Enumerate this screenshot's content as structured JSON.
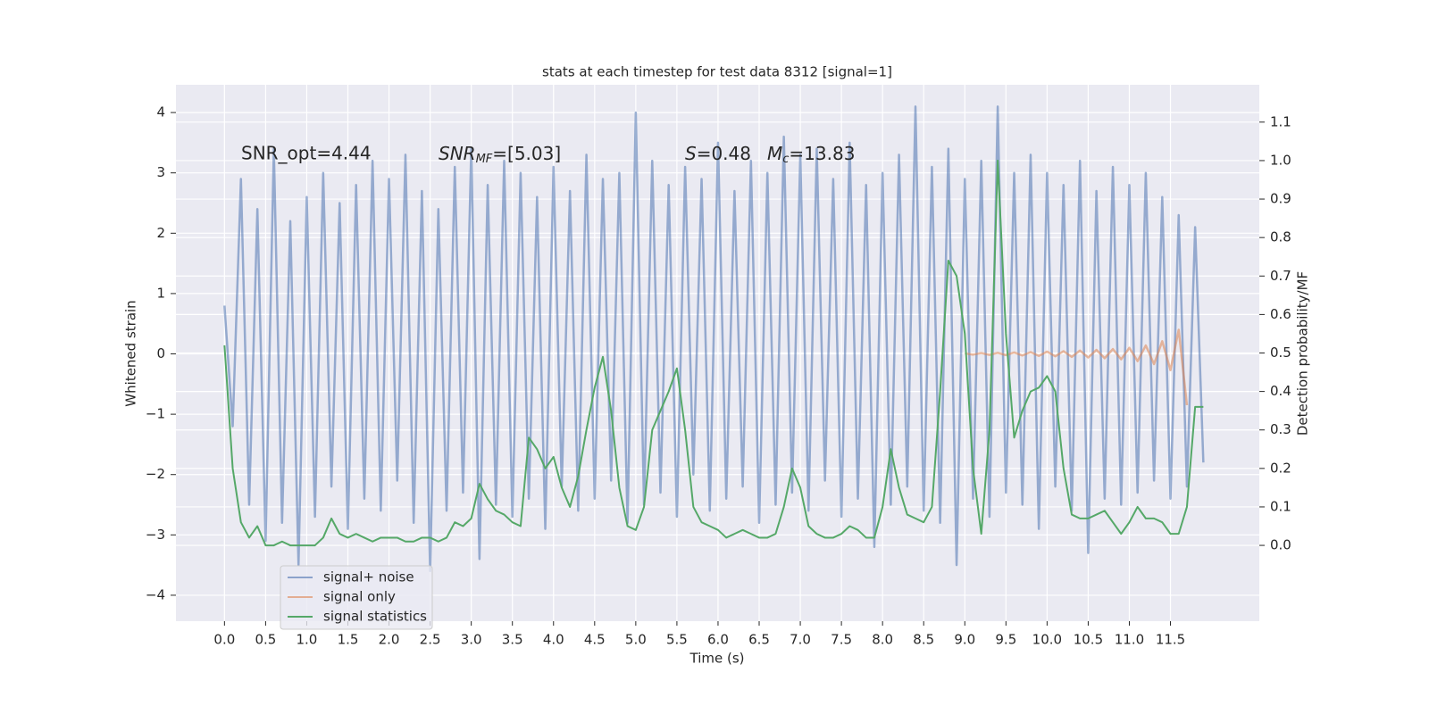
{
  "chart_data": {
    "type": "line",
    "title": "stats at each timestep for test data 8312 [signal=1]",
    "xlabel": "Time (s)",
    "ylabel": "Whitened strain",
    "y2label": "Detection probability/MF",
    "annotations": [
      "SNR_opt=4.44",
      [
        "SNR",
        "MF",
        "=[5.03]"
      ],
      [
        "S",
        "=0.48"
      ],
      [
        "M",
        "c",
        "=13.83"
      ]
    ],
    "x": [
      0,
      0.1,
      0.2,
      0.3,
      0.4,
      0.5,
      0.6,
      0.7,
      0.8,
      0.9,
      1,
      1.1,
      1.2,
      1.3,
      1.4,
      1.5,
      1.6,
      1.7,
      1.8,
      1.9,
      2,
      2.1,
      2.2,
      2.3,
      2.4,
      2.5,
      2.6,
      2.7,
      2.8,
      2.9,
      3,
      3.1,
      3.2,
      3.3,
      3.4,
      3.5,
      3.6,
      3.7,
      3.8,
      3.9,
      4,
      4.1,
      4.2,
      4.3,
      4.4,
      4.5,
      4.6,
      4.7,
      4.8,
      4.9,
      5,
      5.1,
      5.2,
      5.3,
      5.4,
      5.5,
      5.6,
      5.7,
      5.8,
      5.9,
      6,
      6.1,
      6.2,
      6.3,
      6.4,
      6.5,
      6.6,
      6.7,
      6.8,
      6.9,
      7,
      7.1,
      7.2,
      7.3,
      7.4,
      7.5,
      7.6,
      7.7,
      7.8,
      7.9,
      8,
      8.1,
      8.2,
      8.3,
      8.4,
      8.5,
      8.6,
      8.7,
      8.8,
      8.9,
      9,
      9.1,
      9.2,
      9.3,
      9.4,
      9.5,
      9.6,
      9.7,
      9.8,
      9.9,
      10,
      10.1,
      10.2,
      10.3,
      10.4,
      10.5,
      10.6,
      10.7,
      10.8,
      10.9,
      11,
      11.1,
      11.2,
      11.3,
      11.4,
      11.5,
      11.6,
      11.7,
      11.8,
      11.9
    ],
    "series": [
      {
        "name": "signal+ noise",
        "color": "#4c72b0",
        "values": [
          0.8,
          -1.2,
          2.9,
          -2.5,
          2.4,
          -3.1,
          3.4,
          -2.8,
          2.2,
          -3.5,
          2.6,
          -2.7,
          3.0,
          -2.2,
          2.5,
          -2.9,
          2.8,
          -2.4,
          3.2,
          -2.6,
          2.9,
          -2.1,
          3.3,
          -2.8,
          2.7,
          -3.6,
          2.4,
          -2.6,
          3.1,
          -2.3,
          3.4,
          -3.4,
          2.8,
          -2.5,
          3.2,
          -2.7,
          3.0,
          -2.4,
          2.6,
          -2.9,
          3.1,
          -2.2,
          2.7,
          -2.6,
          3.3,
          -2.4,
          2.9,
          -2.1,
          3.0,
          -2.8,
          4.0,
          -2.5,
          3.2,
          -2.3,
          2.8,
          -2.7,
          3.1,
          -2.0,
          2.9,
          -2.6,
          3.5,
          -2.4,
          2.7,
          -2.2,
          3.2,
          -2.8,
          3.0,
          -2.5,
          3.6,
          -2.3,
          3.3,
          -2.6,
          3.4,
          -2.1,
          2.9,
          -2.7,
          3.5,
          -2.4,
          2.8,
          -3.2,
          3.0,
          -2.5,
          3.3,
          -2.2,
          4.1,
          -2.6,
          3.1,
          -2.8,
          3.4,
          -3.5,
          2.9,
          -2.4,
          3.2,
          -2.7,
          4.1,
          -2.3,
          3.0,
          -2.5,
          3.3,
          -2.9,
          3.0,
          -2.2,
          2.8,
          -2.6,
          3.2,
          -3.3,
          2.7,
          -2.4,
          3.1,
          -2.5,
          2.8,
          -2.3,
          3.0,
          -2.1,
          2.6,
          -2.4,
          2.3,
          -2.2,
          2.1,
          -1.8
        ]
      },
      {
        "name": "signal only",
        "color": "#dd8452",
        "x": [
          9,
          9.1,
          9.2,
          9.3,
          9.4,
          9.5,
          9.6,
          9.7,
          9.8,
          9.9,
          10,
          10.1,
          10.2,
          10.3,
          10.4,
          10.5,
          10.6,
          10.7,
          10.8,
          10.9,
          11,
          11.1,
          11.2,
          11.3,
          11.4,
          11.5,
          11.6,
          11.7
        ],
        "values": [
          0.01,
          -0.012,
          0.014,
          -0.016,
          0.018,
          -0.02,
          0.023,
          -0.026,
          0.03,
          -0.033,
          0.037,
          -0.04,
          0.045,
          -0.05,
          0.055,
          -0.06,
          0.066,
          -0.072,
          0.08,
          -0.09,
          0.1,
          -0.12,
          0.14,
          -0.17,
          0.21,
          -0.27,
          0.4,
          -0.85
        ]
      },
      {
        "name": "signal statistics",
        "color": "#55a868",
        "axis": "y2",
        "values": [
          0.52,
          0.2,
          0.06,
          0.02,
          0.05,
          0.0,
          0.0,
          0.01,
          0.0,
          0.0,
          0.0,
          0.0,
          0.02,
          0.07,
          0.03,
          0.02,
          0.03,
          0.02,
          0.01,
          0.02,
          0.02,
          0.02,
          0.01,
          0.01,
          0.02,
          0.02,
          0.01,
          0.02,
          0.06,
          0.05,
          0.07,
          0.16,
          0.12,
          0.09,
          0.08,
          0.06,
          0.05,
          0.28,
          0.25,
          0.2,
          0.23,
          0.15,
          0.1,
          0.18,
          0.3,
          0.41,
          0.49,
          0.35,
          0.15,
          0.05,
          0.04,
          0.1,
          0.3,
          0.35,
          0.4,
          0.46,
          0.3,
          0.1,
          0.06,
          0.05,
          0.04,
          0.02,
          0.03,
          0.04,
          0.03,
          0.02,
          0.02,
          0.03,
          0.1,
          0.2,
          0.15,
          0.05,
          0.03,
          0.02,
          0.02,
          0.03,
          0.05,
          0.04,
          0.02,
          0.02,
          0.1,
          0.25,
          0.15,
          0.08,
          0.07,
          0.06,
          0.1,
          0.4,
          0.74,
          0.7,
          0.55,
          0.2,
          0.03,
          0.3,
          1.0,
          0.55,
          0.28,
          0.35,
          0.4,
          0.41,
          0.44,
          0.4,
          0.2,
          0.08,
          0.07,
          0.07,
          0.08,
          0.09,
          0.06,
          0.03,
          0.06,
          0.1,
          0.07,
          0.07,
          0.06,
          0.03,
          0.03,
          0.1,
          0.36,
          0.36
        ]
      }
    ],
    "xlim": [
      -0.59,
      12.58
    ],
    "ylim": [
      -4.43,
      4.46
    ],
    "y2lim": [
      -0.197,
      1.197
    ],
    "xticks": [
      {
        "value": 0,
        "label": "0.0"
      },
      0.5,
      {
        "value": 1,
        "label": "1.0"
      },
      1.5,
      {
        "value": 2,
        "label": "2.0"
      },
      2.5,
      {
        "value": 3,
        "label": "3.0"
      },
      3.5,
      {
        "value": 4,
        "label": "4.0"
      },
      4.5,
      {
        "value": 5,
        "label": "5.0"
      },
      5.5,
      {
        "value": 6,
        "label": "6.0"
      },
      6.5,
      {
        "value": 7,
        "label": "7.0"
      },
      7.5,
      {
        "value": 8,
        "label": "8.0"
      },
      8.5,
      {
        "value": 9,
        "label": "9.0"
      },
      9.5,
      {
        "value": 10,
        "label": "10.0"
      },
      10.5,
      {
        "value": 11,
        "label": "11.0"
      },
      11.5
    ],
    "yticks": [
      {
        "value": -4,
        "label": "−4"
      },
      {
        "value": -3,
        "label": "−3"
      },
      {
        "value": -2,
        "label": "−2"
      },
      {
        "value": -1,
        "label": "−1"
      },
      0,
      1,
      2,
      3,
      4
    ],
    "y2ticks": [
      {
        "value": 0,
        "label": "0.0"
      },
      0.1,
      0.2,
      0.3,
      0.4,
      0.5,
      0.6,
      0.7,
      0.8,
      0.9,
      {
        "value": 1,
        "label": "1.0"
      },
      1.1
    ],
    "grid": true,
    "legend": "lower left"
  }
}
